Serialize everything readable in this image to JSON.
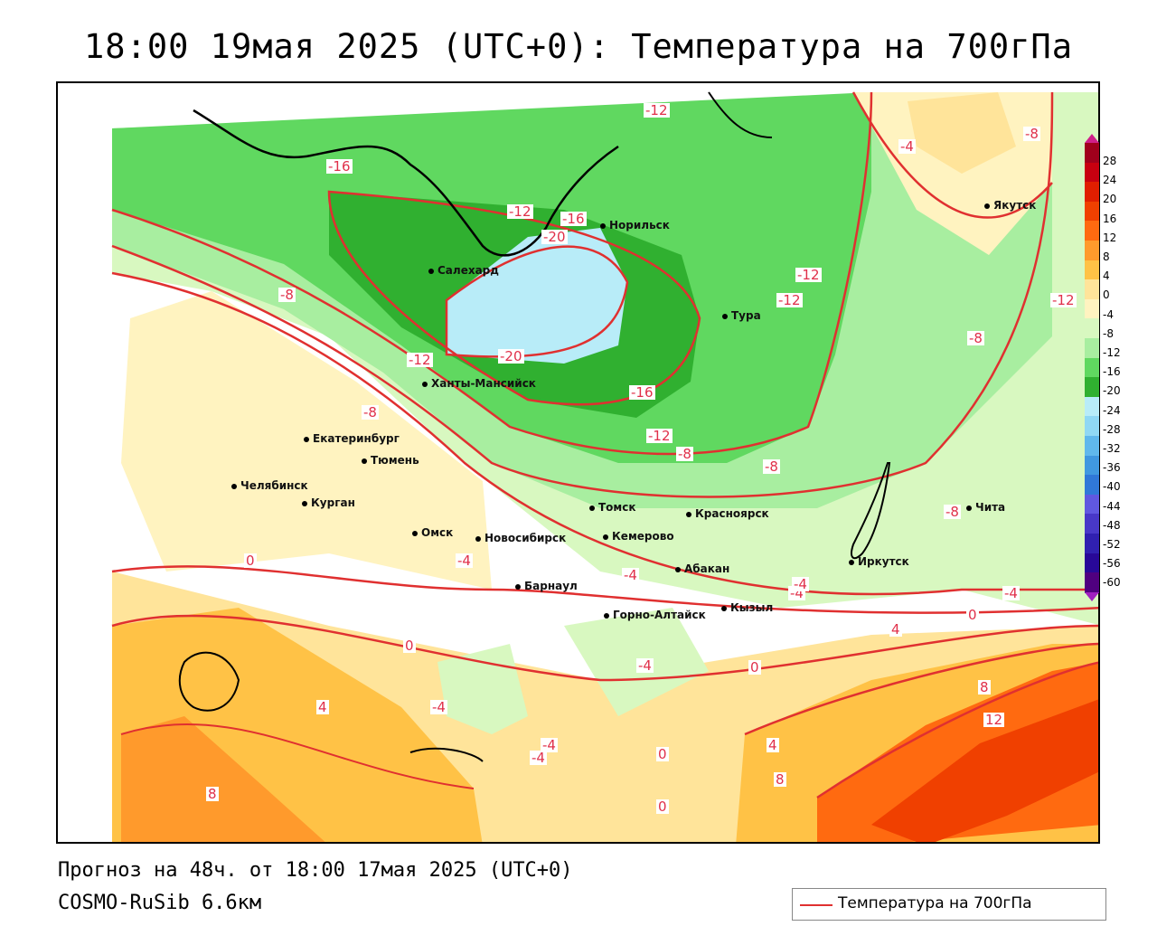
{
  "title": "18:00 19мая 2025 (UTC+0): Температура на 700гПа",
  "forecast_line": "Прогноз на 48ч. от 18:00 17мая 2025 (UTC+0)",
  "model_line": "COSMO-RuSib 6.6км",
  "legend": {
    "label": "Температура на 700гПа",
    "line_color": "#e03030"
  },
  "colorbar": {
    "ticks": [
      "28",
      "24",
      "20",
      "16",
      "12",
      "8",
      "4",
      "0",
      "-4",
      "-8",
      "-12",
      "-16",
      "-20",
      "-24",
      "-28",
      "-32",
      "-36",
      "-40",
      "-44",
      "-48",
      "-52",
      "-56",
      "-60"
    ],
    "colors": [
      "#a0001c",
      "#c80010",
      "#e01e00",
      "#f04000",
      "#ff6a10",
      "#ff9a2c",
      "#ffc246",
      "#ffe49a",
      "#fff3c0",
      "#d8f8c0",
      "#a8eea0",
      "#60d860",
      "#30b030",
      "#b8ecf8",
      "#90d8f4",
      "#60b8ec",
      "#4098e0",
      "#3078d8",
      "#6058e0",
      "#4838c8",
      "#3020b0",
      "#280898",
      "#500080"
    ]
  },
  "cities": [
    {
      "name": "Норильск"
    },
    {
      "name": "Якутск"
    },
    {
      "name": "Салехард"
    },
    {
      "name": "Тура"
    },
    {
      "name": "Ханты-Мансийск"
    },
    {
      "name": "Екатеринбург"
    },
    {
      "name": "Тюмень"
    },
    {
      "name": "Челябинск"
    },
    {
      "name": "Курган"
    },
    {
      "name": "Омск"
    },
    {
      "name": "Томск"
    },
    {
      "name": "Красноярск"
    },
    {
      "name": "Новосибирск"
    },
    {
      "name": "Кемерово"
    },
    {
      "name": "Абакан"
    },
    {
      "name": "Барнаул"
    },
    {
      "name": "Горно-Алтайск"
    },
    {
      "name": "Кызыл"
    },
    {
      "name": "Иркутск"
    },
    {
      "name": "Чита"
    }
  ],
  "contour_labels": [
    "-12",
    "-16",
    "-12",
    "-16",
    "-20",
    "-8",
    "-4",
    "-8",
    "-12",
    "-12",
    "-8",
    "-12",
    "-8",
    "-8",
    "-8",
    "-12",
    "-20",
    "-16",
    "-12",
    "-8",
    "-4",
    "-4",
    "-4",
    "0",
    "-4",
    "-4",
    "4",
    "8",
    "12",
    "8",
    "0",
    "0",
    "4",
    "8",
    "4",
    "0",
    "-4",
    "-4",
    "-4",
    "0",
    "0",
    "-4"
  ]
}
